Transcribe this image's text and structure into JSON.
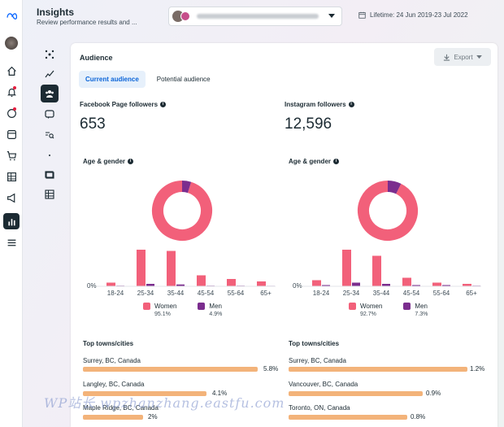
{
  "header": {
    "title": "Insights",
    "subtitle": "Review performance results and ...",
    "date_range": "Lifetime: 24 Jun 2019-23 Jul 2022"
  },
  "card": {
    "title": "Audience",
    "export_label": "Export",
    "tabs": [
      {
        "label": "Current audience",
        "active": true
      },
      {
        "label": "Potential audience",
        "active": false
      }
    ]
  },
  "facebook": {
    "followers_label": "Facebook Page followers",
    "followers_value": "653",
    "age_gender_label": "Age & gender",
    "zero_label": "0%",
    "women_label": "Women",
    "women_pct": "95.1%",
    "men_label": "Men",
    "men_pct": "4.9%",
    "towns_label": "Top towns/cities",
    "towns": [
      {
        "name": "Surrey, BC, Canada",
        "value": "5.8%",
        "share": 5.8
      },
      {
        "name": "Langley, BC, Canada",
        "value": "4.1%",
        "share": 4.1
      },
      {
        "name": "Maple Ridge, BC, Canada",
        "value": "2%",
        "share": 2.0
      }
    ]
  },
  "instagram": {
    "followers_label": "Instagram followers",
    "followers_value": "12,596",
    "age_gender_label": "Age & gender",
    "zero_label": "0%",
    "women_label": "Women",
    "women_pct": "92.7%",
    "men_label": "Men",
    "men_pct": "7.3%",
    "towns_label": "Top towns/cities",
    "towns": [
      {
        "name": "Surrey, BC, Canada",
        "value": "1.2%",
        "share": 1.2
      },
      {
        "name": "Vancouver, BC, Canada",
        "value": "0.9%",
        "share": 0.9
      },
      {
        "name": "Toronto, ON, Canada",
        "value": "0.8%",
        "share": 0.8
      }
    ]
  },
  "colors": {
    "women": "#f2607a",
    "men": "#7b2d8e",
    "town_bar": "#f3b37a",
    "accent": "#0a64d8"
  },
  "watermark": "WP站长 wpzhanzhang.eastfu.com",
  "chart_data": [
    {
      "type": "bar",
      "categories": [
        "18-24",
        "25-34",
        "35-44",
        "45-54",
        "55-64",
        "65+"
      ],
      "series": [
        {
          "name": "Women",
          "values": [
            3,
            30,
            29,
            9,
            6,
            4
          ]
        },
        {
          "name": "Men",
          "values": [
            0.5,
            2,
            1.5,
            0.5,
            0.5,
            0.4
          ]
        }
      ],
      "donut": [
        {
          "name": "Women",
          "value": 95.1
        },
        {
          "name": "Men",
          "value": 4.9
        }
      ],
      "ylim": [
        0,
        32
      ]
    },
    {
      "type": "bar",
      "categories": [
        "18-24",
        "25-34",
        "35-44",
        "45-54",
        "55-64",
        "65+"
      ],
      "series": [
        {
          "name": "Women",
          "values": [
            5,
            30,
            25,
            7,
            3,
            2
          ]
        },
        {
          "name": "Men",
          "values": [
            1,
            3,
            2,
            1,
            1,
            0.5
          ]
        }
      ],
      "donut": [
        {
          "name": "Women",
          "value": 92.7
        },
        {
          "name": "Men",
          "value": 7.3
        }
      ],
      "ylim": [
        0,
        32
      ]
    }
  ]
}
